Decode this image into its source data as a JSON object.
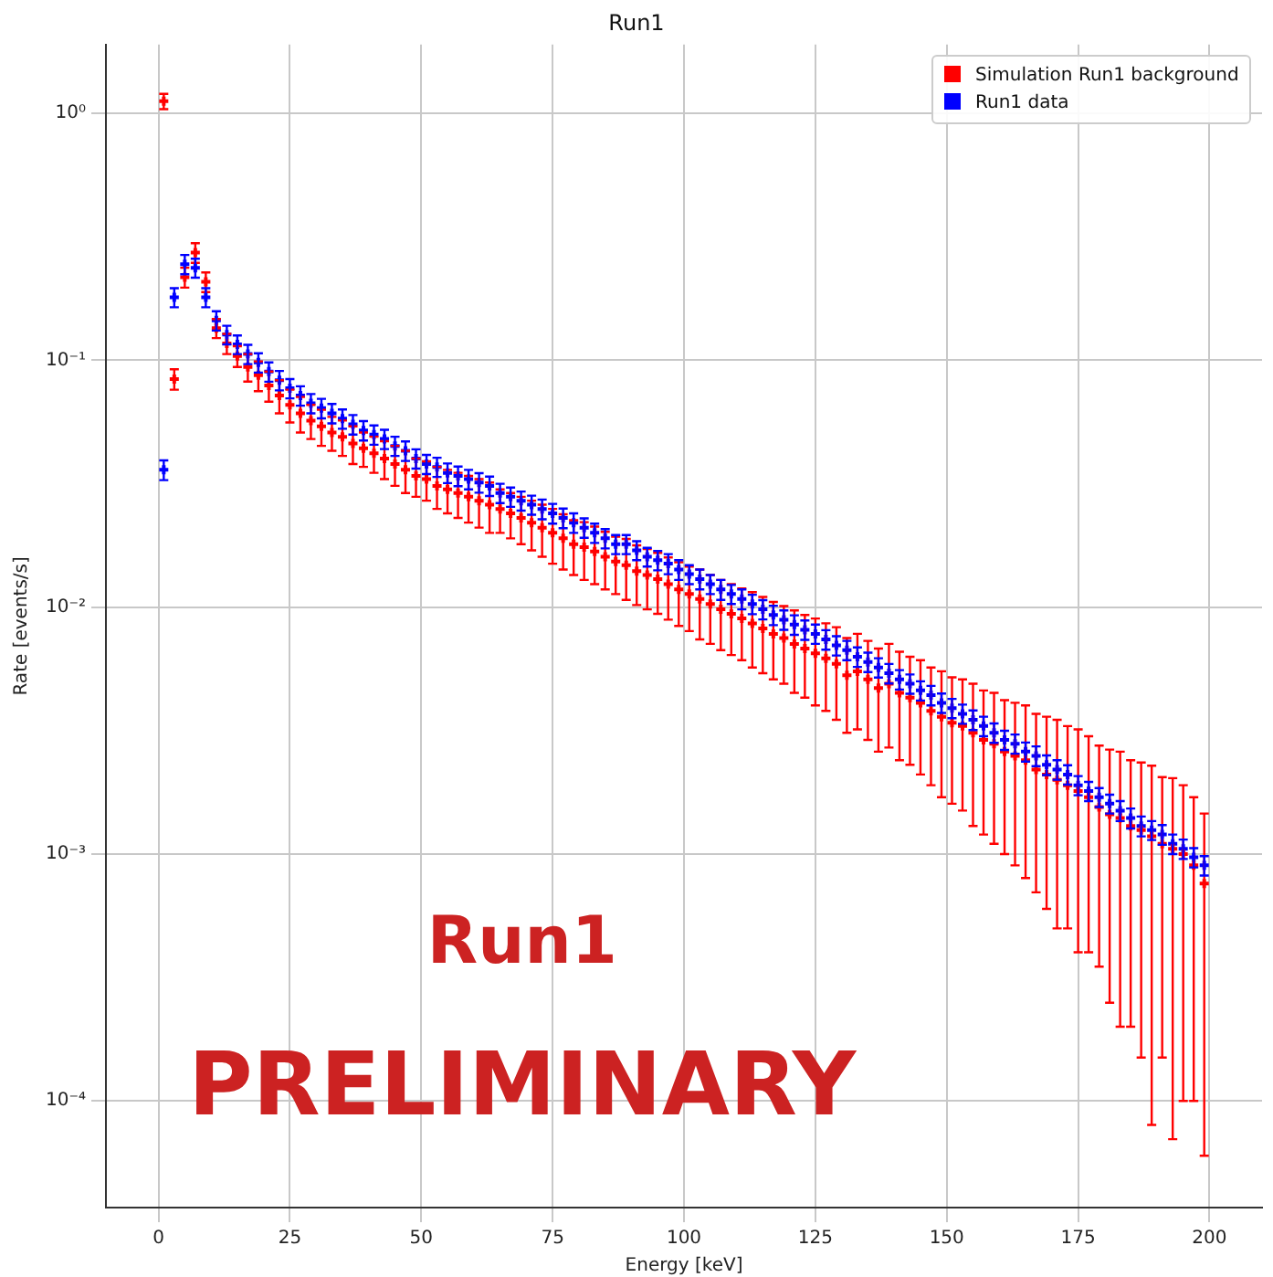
{
  "chart_data": {
    "type": "scatter",
    "title": "Run1",
    "xlabel": "Energy [keV]",
    "ylabel": "Rate [events/s]",
    "x": [
      1,
      3,
      5,
      7,
      9,
      11,
      13,
      15,
      17,
      19,
      21,
      23,
      25,
      27,
      29,
      31,
      33,
      35,
      37,
      39,
      41,
      43,
      45,
      47,
      49,
      51,
      53,
      55,
      57,
      59,
      61,
      63,
      65,
      67,
      69,
      71,
      73,
      75,
      77,
      79,
      81,
      83,
      85,
      87,
      89,
      91,
      93,
      95,
      97,
      99,
      101,
      103,
      105,
      107,
      109,
      111,
      113,
      115,
      117,
      119,
      121,
      123,
      125,
      127,
      129,
      131,
      133,
      135,
      137,
      139,
      141,
      143,
      145,
      147,
      149,
      151,
      153,
      155,
      157,
      159,
      161,
      163,
      165,
      167,
      169,
      171,
      173,
      175,
      177,
      179,
      181,
      183,
      185,
      187,
      189,
      191,
      193,
      195,
      197,
      199
    ],
    "series": [
      {
        "name": "Simulation Run1 background",
        "color": "#ff0000",
        "values": [
          1.12,
          0.084,
          0.217,
          0.273,
          0.208,
          0.135,
          0.117,
          0.104,
          0.094,
          0.087,
          0.079,
          0.072,
          0.066,
          0.061,
          0.057,
          0.054,
          0.051,
          0.049,
          0.046,
          0.044,
          0.042,
          0.04,
          0.038,
          0.036,
          0.034,
          0.033,
          0.031,
          0.03,
          0.029,
          0.028,
          0.027,
          0.026,
          0.025,
          0.024,
          0.023,
          0.022,
          0.021,
          0.02,
          0.019,
          0.018,
          0.0175,
          0.0168,
          0.016,
          0.0153,
          0.0148,
          0.014,
          0.0135,
          0.013,
          0.0124,
          0.0118,
          0.0113,
          0.0108,
          0.0103,
          0.0098,
          0.0094,
          0.009,
          0.0086,
          0.0082,
          0.0078,
          0.0075,
          0.0071,
          0.0068,
          0.0065,
          0.0062,
          0.0059,
          0.0053,
          0.0055,
          0.0051,
          0.0047,
          0.0049,
          0.0045,
          0.0043,
          0.0041,
          0.0038,
          0.0036,
          0.0034,
          0.0033,
          0.0031,
          0.0029,
          0.0028,
          0.0026,
          0.0025,
          0.0024,
          0.0022,
          0.0021,
          0.002,
          0.0019,
          0.0018,
          0.0017,
          0.00155,
          0.00145,
          0.0014,
          0.0013,
          0.00125,
          0.00118,
          0.0011,
          0.00105,
          0.001,
          0.0009,
          0.00076
        ],
        "errors": [
          0.08,
          0.008,
          0.02,
          0.025,
          0.019,
          0.012,
          0.011,
          0.01,
          0.012,
          0.012,
          0.011,
          0.011,
          0.01,
          0.01,
          0.009,
          0.009,
          0.008,
          0.008,
          0.008,
          0.007,
          0.007,
          0.007,
          0.007,
          0.007,
          0.006,
          0.006,
          0.006,
          0.006,
          0.006,
          0.006,
          0.006,
          0.006,
          0.005,
          0.005,
          0.005,
          0.005,
          0.005,
          0.005,
          0.0048,
          0.0045,
          0.0046,
          0.0044,
          0.0042,
          0.004,
          0.0041,
          0.0038,
          0.0037,
          0.0036,
          0.0035,
          0.0034,
          0.0033,
          0.0034,
          0.0032,
          0.0031,
          0.003,
          0.0029,
          0.0029,
          0.0028,
          0.0027,
          0.0026,
          0.0026,
          0.0025,
          0.0025,
          0.0024,
          0.0024,
          0.0022,
          0.0023,
          0.0022,
          0.0021,
          0.0022,
          0.0021,
          0.002,
          0.002,
          0.0019,
          0.0019,
          0.0018,
          0.0018,
          0.0018,
          0.0017,
          0.0017,
          0.0016,
          0.0016,
          0.0016,
          0.0015,
          0.0015,
          0.0015,
          0.0014,
          0.0014,
          0.0013,
          0.0012,
          0.0012,
          0.0012,
          0.0011,
          0.0011,
          0.0011,
          0.00095,
          0.00098,
          0.0009,
          0.0008,
          0.0007
        ]
      },
      {
        "name": "Run1 data",
        "color": "#0000ff",
        "values": [
          0.036,
          0.18,
          0.245,
          0.237,
          0.18,
          0.145,
          0.127,
          0.116,
          0.106,
          0.098,
          0.09,
          0.083,
          0.077,
          0.072,
          0.067,
          0.064,
          0.061,
          0.058,
          0.055,
          0.052,
          0.05,
          0.048,
          0.045,
          0.043,
          0.04,
          0.038,
          0.037,
          0.035,
          0.034,
          0.033,
          0.032,
          0.031,
          0.029,
          0.028,
          0.027,
          0.026,
          0.025,
          0.024,
          0.023,
          0.022,
          0.021,
          0.02,
          0.019,
          0.018,
          0.018,
          0.017,
          0.016,
          0.0155,
          0.015,
          0.0142,
          0.0136,
          0.013,
          0.0124,
          0.0118,
          0.0113,
          0.0108,
          0.0103,
          0.0098,
          0.0093,
          0.0089,
          0.0085,
          0.0081,
          0.0078,
          0.0074,
          0.007,
          0.0067,
          0.0063,
          0.006,
          0.0057,
          0.0054,
          0.0051,
          0.0049,
          0.0046,
          0.0044,
          0.0041,
          0.0039,
          0.0037,
          0.0035,
          0.0033,
          0.0031,
          0.0029,
          0.0028,
          0.0026,
          0.0025,
          0.0023,
          0.0022,
          0.0021,
          0.0019,
          0.0018,
          0.0017,
          0.0016,
          0.0015,
          0.0014,
          0.0013,
          0.00125,
          0.0012,
          0.0011,
          0.00105,
          0.00097,
          0.0009
        ],
        "errors": [
          0.0033,
          0.016,
          0.022,
          0.021,
          0.016,
          0.013,
          0.011,
          0.01,
          0.0095,
          0.0088,
          0.0081,
          0.0075,
          0.0069,
          0.0065,
          0.006,
          0.0058,
          0.0055,
          0.0052,
          0.005,
          0.0047,
          0.0045,
          0.0043,
          0.004,
          0.0039,
          0.0036,
          0.0034,
          0.0033,
          0.0032,
          0.0031,
          0.003,
          0.0029,
          0.0028,
          0.0026,
          0.0025,
          0.0024,
          0.0023,
          0.0023,
          0.0022,
          0.0021,
          0.002,
          0.0019,
          0.0018,
          0.0017,
          0.0016,
          0.0016,
          0.0015,
          0.0014,
          0.0014,
          0.0014,
          0.0013,
          0.0012,
          0.0012,
          0.0011,
          0.0011,
          0.001,
          0.001,
          0.00093,
          0.00088,
          0.00084,
          0.0008,
          0.00077,
          0.00073,
          0.0007,
          0.00067,
          0.00063,
          0.0006,
          0.00057,
          0.00054,
          0.00051,
          0.00049,
          0.00046,
          0.00044,
          0.00041,
          0.0004,
          0.00037,
          0.00035,
          0.00033,
          0.00032,
          0.0003,
          0.00028,
          0.00026,
          0.00025,
          0.00023,
          0.00023,
          0.00021,
          0.0002,
          0.00019,
          0.00017,
          0.00016,
          0.00015,
          0.00014,
          0.00014,
          0.00013,
          0.00012,
          0.00011,
          0.00011,
          0.0001,
          9.5e-05,
          8.7e-05,
          8.1e-05
        ]
      }
    ],
    "xlim": [
      -10,
      210
    ],
    "xticks": [
      0,
      25,
      50,
      75,
      100,
      125,
      150,
      175,
      200
    ],
    "ylim": [
      3.7e-05,
      1.9
    ],
    "yticks": [
      {
        "value": 0.0001,
        "label": "10⁻⁴"
      },
      {
        "value": 0.001,
        "label": "10⁻³"
      },
      {
        "value": 0.01,
        "label": "10⁻²"
      },
      {
        "value": 0.1,
        "label": "10⁻¹"
      },
      {
        "value": 1,
        "label": "10⁰"
      }
    ],
    "log": "y",
    "grid": true,
    "legend": "top right",
    "marker": "cross",
    "annotations": [
      "Run1",
      "PRELIMINARY"
    ]
  }
}
